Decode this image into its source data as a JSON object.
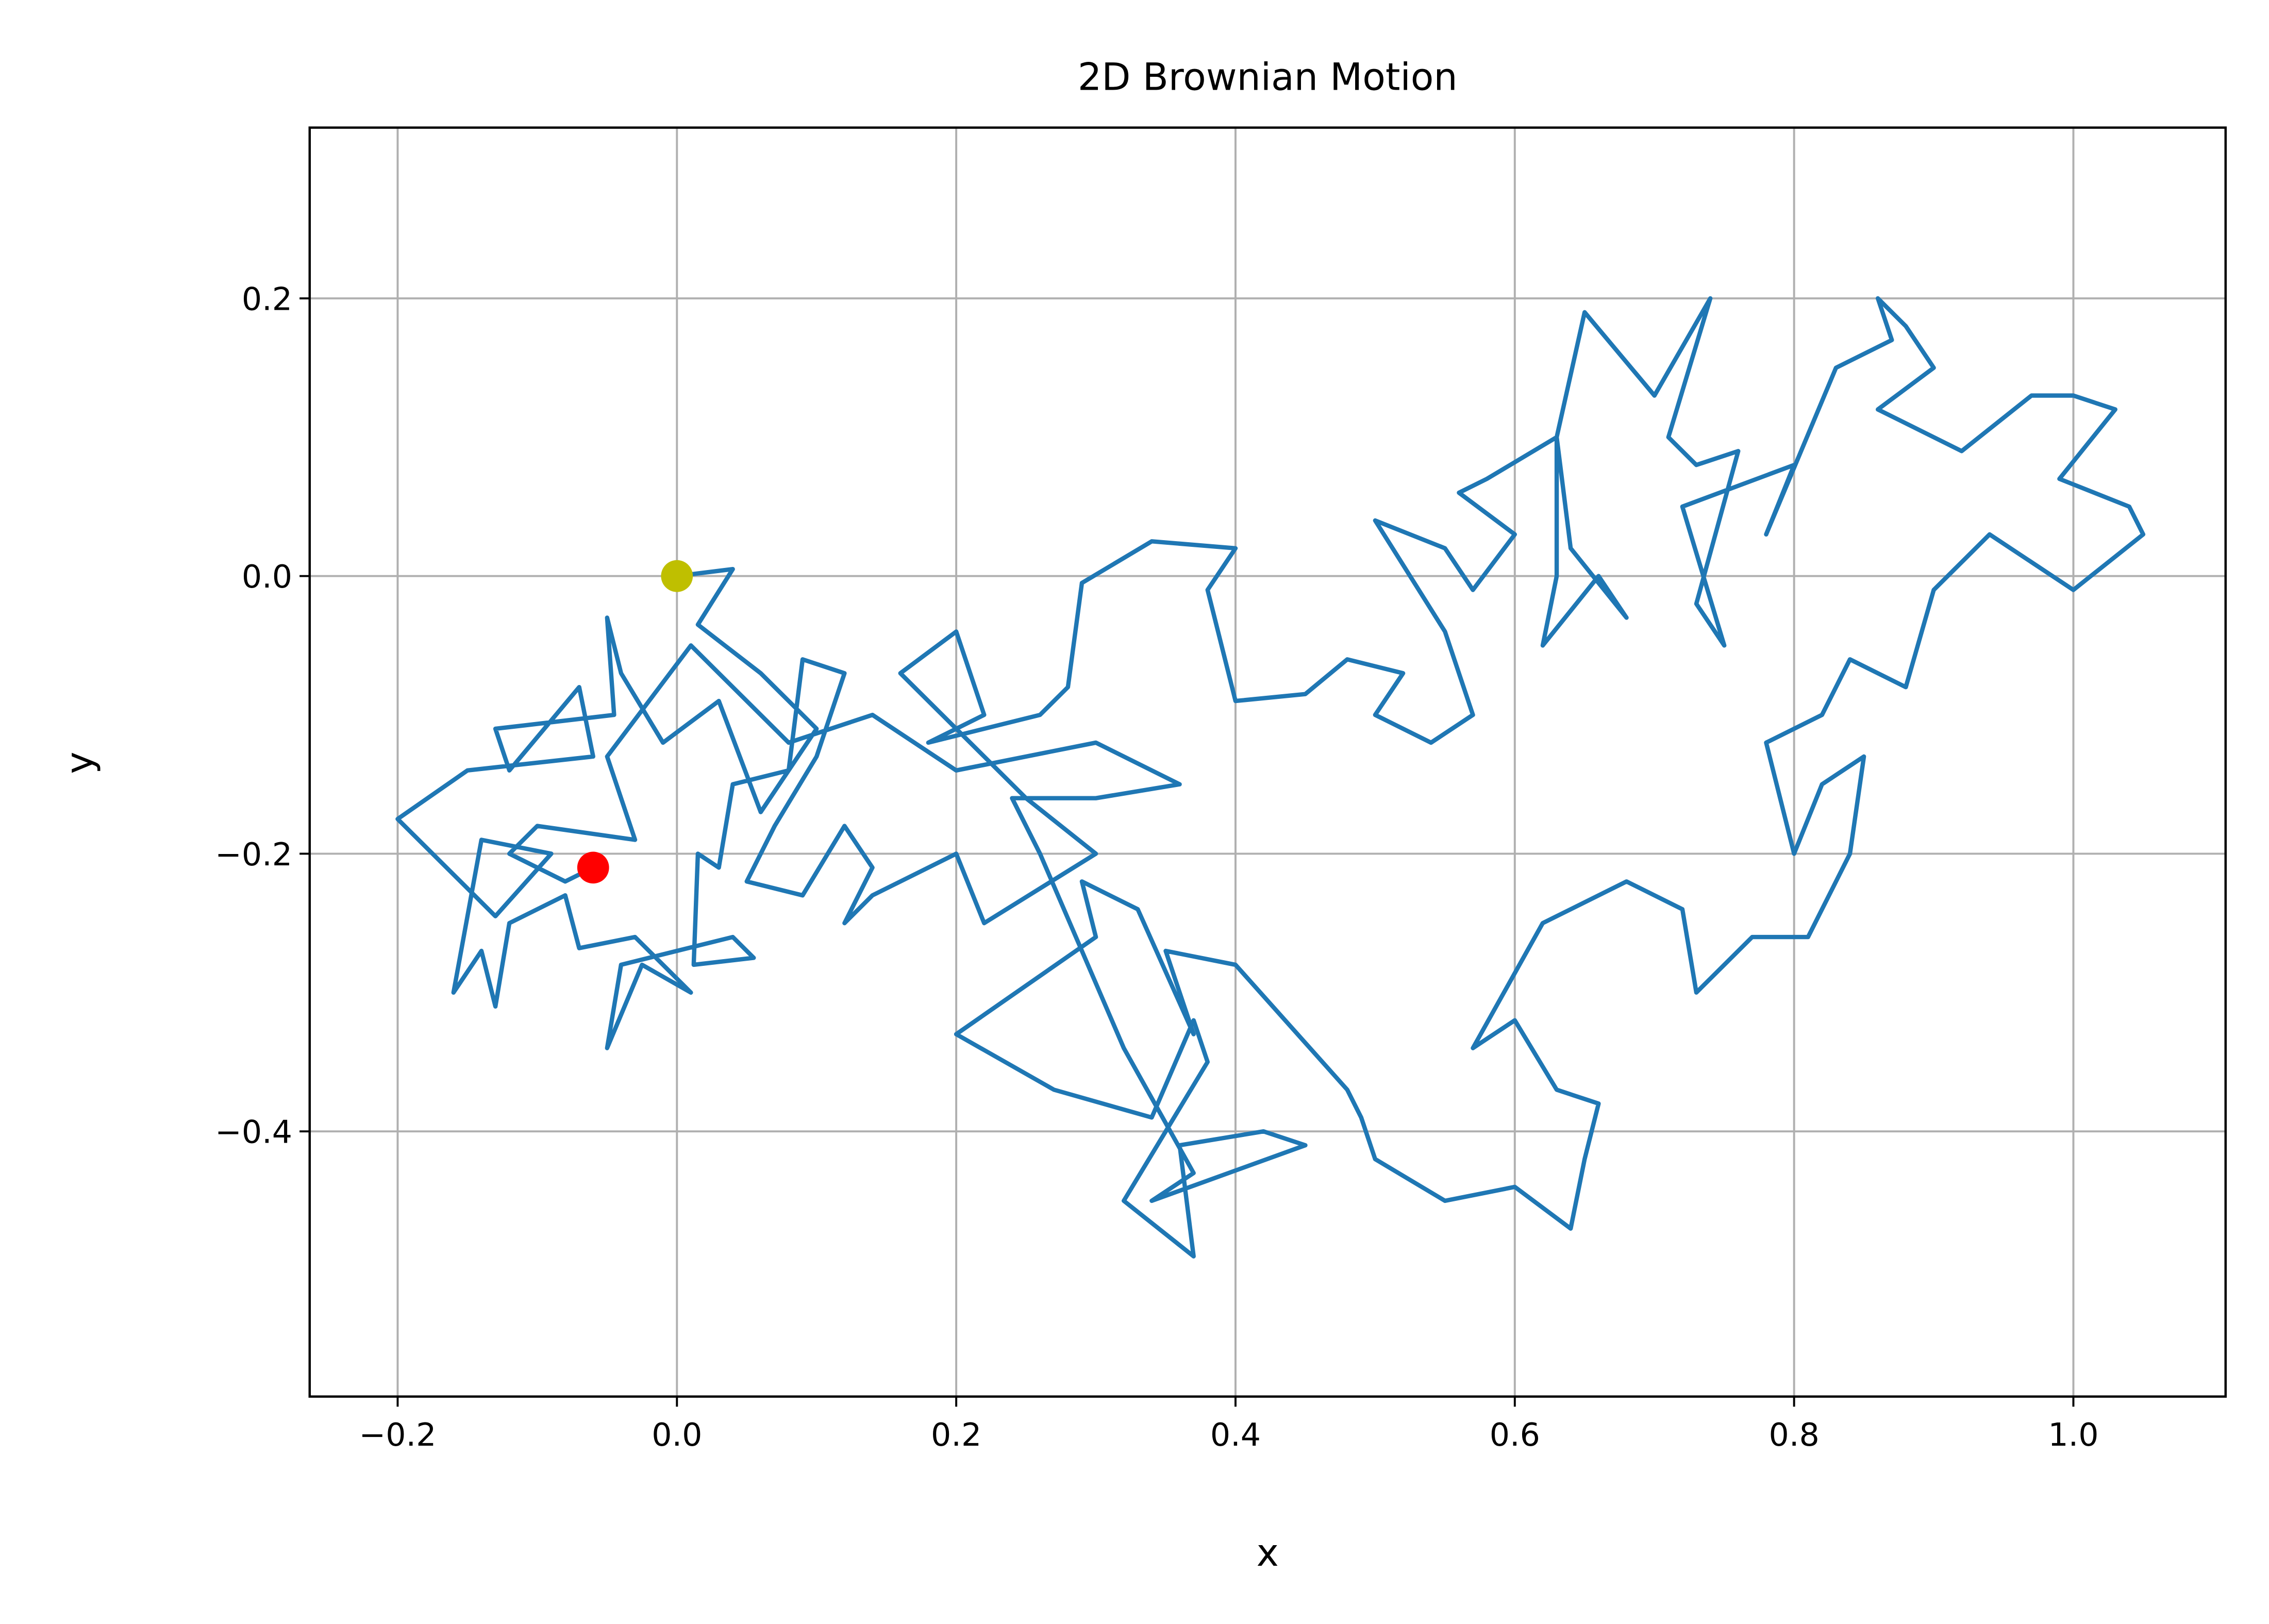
{
  "chart_data": {
    "type": "line",
    "title": "2D Brownian Motion",
    "x_label": "x",
    "y_label": "y",
    "xlim": [
      -0.263,
      1.109
    ],
    "ylim": [
      -0.591,
      0.323
    ],
    "grid": true,
    "xticks": [
      {
        "value": -0.2,
        "label": "−0.2"
      },
      {
        "value": 0,
        "label": "0.0"
      },
      0.2,
      0.4,
      0.6,
      0.8,
      {
        "value": 1,
        "label": "1.0"
      }
    ],
    "yticks": [
      {
        "value": -0.4,
        "label": "−0.4"
      },
      {
        "value": -0.2,
        "label": "−0.2"
      },
      {
        "value": 0,
        "label": "0.0"
      },
      0.2
    ],
    "series": [
      {
        "color": "#1f77b4",
        "x": [
          0,
          0.04,
          0.015,
          0.06,
          0.1,
          0.06,
          0.03,
          -0.01,
          -0.04,
          -0.05,
          -0.045,
          -0.13,
          -0.12,
          -0.07,
          -0.06,
          -0.15,
          -0.2,
          -0.13,
          -0.09,
          -0.14,
          -0.16,
          -0.14,
          -0.13,
          -0.12,
          -0.08,
          -0.07,
          -0.03,
          0.01,
          -0.025,
          -0.05,
          -0.04,
          0.04,
          0.055,
          0.012,
          0.015,
          0.03,
          0.04,
          0.08,
          0.09,
          0.12,
          0.1,
          0.07,
          0.05,
          0.09,
          0.12,
          0.14,
          0.12,
          0.14,
          0.2,
          0.22,
          0.3,
          0.25,
          0.2,
          0.16,
          0.2,
          0.22,
          0.18,
          0.26,
          0.28,
          0.29,
          0.34,
          0.4,
          0.38,
          0.4,
          0.45,
          0.48,
          0.52,
          0.5,
          0.54,
          0.57,
          0.55,
          0.5,
          0.55,
          0.57,
          0.6,
          0.56,
          0.58,
          0.63,
          0.63,
          0.62,
          0.66,
          0.68,
          0.64,
          0.63,
          0.65,
          0.7,
          0.74,
          0.71,
          0.73,
          0.76,
          0.73,
          0.75,
          0.72,
          0.8,
          0.78,
          0.83,
          0.87,
          0.86,
          0.88,
          0.9,
          0.86,
          0.92,
          0.97,
          1.0,
          1.03,
          0.99,
          1.04,
          1.05,
          1.0,
          0.94,
          0.9,
          0.88,
          0.84,
          0.82,
          0.78,
          0.8,
          0.82,
          0.85,
          0.84,
          0.81,
          0.77,
          0.73,
          0.72,
          0.68,
          0.62,
          0.57,
          0.6,
          0.63,
          0.66,
          0.65,
          0.64,
          0.6,
          0.55,
          0.5,
          0.49,
          0.48,
          0.4,
          0.35,
          0.37,
          0.33,
          0.29,
          0.3,
          0.2,
          0.27,
          0.34,
          0.37,
          0.38,
          0.32,
          0.37,
          0.36,
          0.42,
          0.45,
          0.34,
          0.37,
          0.32,
          0.26,
          0.24,
          0.3,
          0.36,
          0.3,
          0.2,
          0.14,
          0.08,
          0.04,
          0.01,
          -0.02,
          -0.05,
          -0.03,
          -0.1,
          -0.12,
          -0.08,
          -0.06
        ],
        "y": [
          0,
          0.005,
          -0.035,
          -0.07,
          -0.11,
          -0.17,
          -0.09,
          -0.12,
          -0.07,
          -0.03,
          -0.1,
          -0.11,
          -0.14,
          -0.08,
          -0.13,
          -0.14,
          -0.175,
          -0.245,
          -0.2,
          -0.19,
          -0.3,
          -0.27,
          -0.31,
          -0.25,
          -0.23,
          -0.268,
          -0.26,
          -0.3,
          -0.28,
          -0.34,
          -0.28,
          -0.26,
          -0.275,
          -0.28,
          -0.2,
          -0.21,
          -0.15,
          -0.14,
          -0.06,
          -0.07,
          -0.13,
          -0.18,
          -0.22,
          -0.23,
          -0.18,
          -0.21,
          -0.25,
          -0.23,
          -0.2,
          -0.25,
          -0.2,
          -0.16,
          -0.11,
          -0.07,
          -0.04,
          -0.1,
          -0.12,
          -0.1,
          -0.08,
          -0.005,
          0.025,
          0.02,
          -0.01,
          -0.09,
          -0.085,
          -0.06,
          -0.07,
          -0.1,
          -0.12,
          -0.1,
          -0.04,
          0.04,
          0.02,
          -0.01,
          0.03,
          0.06,
          0.07,
          0.1,
          0,
          -0.05,
          0,
          -0.03,
          0.02,
          0.1,
          0.19,
          0.13,
          0.2,
          0.1,
          0.08,
          0.09,
          -0.02,
          -0.05,
          0.05,
          0.08,
          0.03,
          0.15,
          0.17,
          0.2,
          0.18,
          0.15,
          0.12,
          0.09,
          0.13,
          0.13,
          0.12,
          0.07,
          0.05,
          0.03,
          -0.01,
          0.03,
          -0.01,
          -0.08,
          -0.06,
          -0.1,
          -0.12,
          -0.2,
          -0.15,
          -0.13,
          -0.2,
          -0.26,
          -0.26,
          -0.3,
          -0.24,
          -0.22,
          -0.25,
          -0.34,
          -0.32,
          -0.37,
          -0.38,
          -0.42,
          -0.47,
          -0.44,
          -0.45,
          -0.42,
          -0.39,
          -0.37,
          -0.28,
          -0.27,
          -0.33,
          -0.24,
          -0.22,
          -0.26,
          -0.33,
          -0.37,
          -0.39,
          -0.32,
          -0.35,
          -0.45,
          -0.49,
          -0.41,
          -0.4,
          -0.41,
          -0.45,
          -0.43,
          -0.34,
          -0.2,
          -0.16,
          -0.16,
          -0.15,
          -0.12,
          -0.14,
          -0.1,
          -0.12,
          -0.08,
          -0.05,
          -0.09,
          -0.13,
          -0.19,
          -0.18,
          -0.2,
          -0.22,
          -0.21
        ]
      }
    ],
    "points": [
      {
        "x": 0,
        "y": 0,
        "color": "#bfbf00"
      },
      {
        "x": -0.06,
        "y": -0.21,
        "color": "#ff0000"
      }
    ]
  }
}
